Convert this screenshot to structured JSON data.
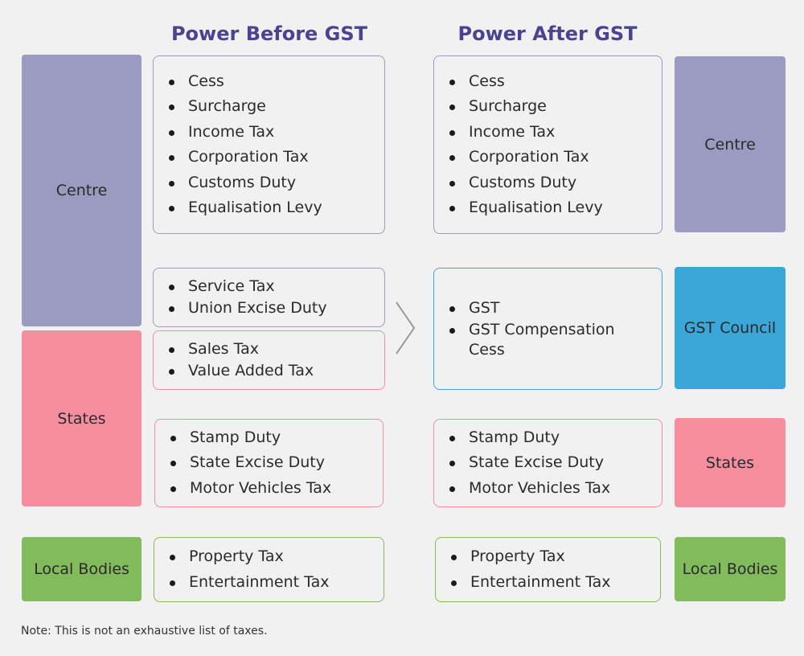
{
  "headings": {
    "before": "Power Before GST",
    "after": "Power After GST"
  },
  "left_blocks": {
    "centre": "Centre",
    "states": "States",
    "local": "Local Bodies"
  },
  "right_blocks": {
    "centre": "Centre",
    "gst_council": "GST Council",
    "states": "States",
    "local": "Local Bodies"
  },
  "before": {
    "centre_taxes": [
      "Cess",
      "Surcharge",
      "Income Tax",
      "Corporation Tax",
      "Customs Duty",
      "Equalisation Levy"
    ],
    "centre_indirect": [
      "Service Tax",
      "Union Excise Duty"
    ],
    "states_indirect": [
      "Sales Tax",
      "Value Added Tax"
    ],
    "states_taxes": [
      "Stamp Duty",
      "State Excise Duty",
      "Motor Vehicles Tax"
    ],
    "local_taxes": [
      "Property Tax",
      "Entertainment Tax"
    ]
  },
  "after": {
    "centre_taxes": [
      "Cess",
      "Surcharge",
      "Income Tax",
      "Corporation Tax",
      "Customs Duty",
      "Equalisation Levy"
    ],
    "gst_taxes": [
      "GST",
      "GST Compensation Cess"
    ],
    "states_taxes": [
      "Stamp Duty",
      "State Excise Duty",
      "Motor Vehicles Tax"
    ],
    "local_taxes": [
      "Property Tax",
      "Entertainment Tax"
    ]
  },
  "colors": {
    "centre": "#9b9bc2",
    "states": "#f78e9f",
    "local": "#82bb5c",
    "gst_council": "#3aa7d8",
    "heading": "#4a4490"
  },
  "note": "Note: This is not an exhaustive list of taxes."
}
